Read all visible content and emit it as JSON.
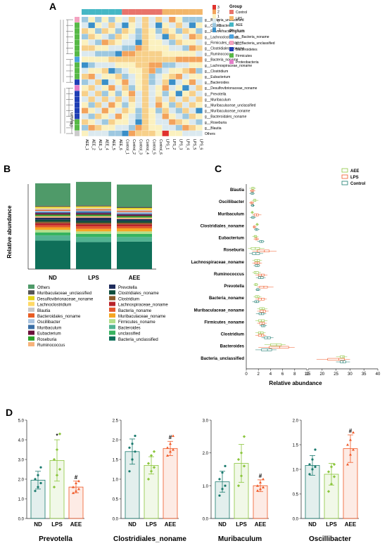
{
  "panels": {
    "a": "A",
    "b": "B",
    "c": "C",
    "d": "D"
  },
  "chart_data": [
    {
      "type": "heatmap",
      "panel": "A",
      "rows": [
        "g__Bacteria_unclassified",
        "g__Oscillibacter",
        "g__Flavonifractor",
        "g__Lachnoclostridium",
        "g__Firmicutes_noname",
        "g__Clostridiales_noname",
        "g__Ruminococcus",
        "g__Bacteria_noname",
        "g__Lachnospiraceae_noname",
        "g__Clostridium",
        "g__Eubacterium",
        "g__Bacteroides",
        "g__Desulfovibrionaceae_noname",
        "g__Prevotella",
        "g__Muribaculum",
        "g__Muribaculaceae_unclassified",
        "g__Muribaculaceae_noname",
        "g__Bacteroidales_noname",
        "g__Roseburia",
        "g__Blautia",
        "Others"
      ],
      "columns": [
        "AEE_1",
        "AEE_2",
        "AEE_3",
        "AEE_4",
        "AEE_5",
        "AEE_6",
        "Control_1",
        "Control_2",
        "Control_3",
        "Control_4",
        "Control_5",
        "Control_6",
        "LPS_1",
        "LPS_2",
        "LPS_3",
        "LPS_4",
        "LPS_5",
        "LPS_6"
      ],
      "column_axis_label": "Phylum",
      "color_scale_ticks": [
        "3",
        "2",
        "1",
        "0",
        "-1",
        "-2"
      ],
      "legend": {
        "group_title": "Group",
        "groups": [
          {
            "name": "Control",
            "color": "#e8736b"
          },
          {
            "name": "LPS",
            "color": "#f2b66a"
          },
          {
            "name": "AEE",
            "color": "#45b7c5"
          }
        ],
        "phylum_title": "Phylum",
        "phyla": [
          {
            "name": "g__Bacteria_noname",
            "color": "#4aa3df"
          },
          {
            "name": "g__Bacteria_unclassified",
            "color": "#f4a3c0"
          },
          {
            "name": "Bacteroidetes",
            "color": "#1f3fb5"
          },
          {
            "name": "Firmicutes",
            "color": "#57b947"
          },
          {
            "name": "Proteobacteria",
            "color": "#e37ec9"
          }
        ]
      }
    },
    {
      "type": "bar",
      "panel": "B",
      "stacked": true,
      "ylabel": "Relative abundance",
      "categories": [
        "ND",
        "LPS",
        "AEE"
      ],
      "series": [
        {
          "name": "Bacteria_unclassified",
          "color": "#0f6f59",
          "values": [
            28.0,
            26.5,
            27.0
          ]
        },
        {
          "name": "Bacteroides",
          "color": "#52b392",
          "values": [
            5.0,
            5.0,
            4.5
          ]
        },
        {
          "name": "unclassified",
          "color": "#37b35f",
          "values": [
            3.0,
            3.0,
            3.0
          ]
        },
        {
          "name": "Firmicutes_noname",
          "color": "#b2df8a",
          "values": [
            2.5,
            2.5,
            2.5
          ]
        },
        {
          "name": "Muribaculaceae_noname",
          "color": "#f5a623",
          "values": [
            2.5,
            2.5,
            3.0
          ]
        },
        {
          "name": "Bacteria_noname",
          "color": "#e4572e",
          "values": [
            2.0,
            2.5,
            2.0
          ]
        },
        {
          "name": "Lachnospiraceae_noname",
          "color": "#b8222a",
          "values": [
            2.0,
            2.0,
            2.0
          ]
        },
        {
          "name": "Clostridium",
          "color": "#8a5a2b",
          "values": [
            1.5,
            1.5,
            1.5
          ]
        },
        {
          "name": "Clostridiales_noname",
          "color": "#0d4d3c",
          "values": [
            2.0,
            2.0,
            2.0
          ]
        },
        {
          "name": "Prevotella",
          "color": "#1f2d5c",
          "values": [
            2.0,
            3.0,
            1.6
          ]
        },
        {
          "name": "Ruminococcus",
          "color": "#f7b37b",
          "values": [
            1.5,
            1.5,
            1.5
          ]
        },
        {
          "name": "Roseburia",
          "color": "#2ca02c",
          "values": [
            1.5,
            1.5,
            1.5
          ]
        },
        {
          "name": "Eubacterium",
          "color": "#6b0f3a",
          "values": [
            1.5,
            1.5,
            1.5
          ]
        },
        {
          "name": "Muribaculum",
          "color": "#3a6ea5",
          "values": [
            1.1,
            1.7,
            1.0
          ]
        },
        {
          "name": "Oscillibacter",
          "color": "#aac4e0",
          "values": [
            1.1,
            0.9,
            1.4
          ]
        },
        {
          "name": "Bacteroidales_noname",
          "color": "#e85d24",
          "values": [
            1.0,
            1.0,
            1.0
          ]
        },
        {
          "name": "Blautia",
          "color": "#c7c7c7",
          "values": [
            1.0,
            1.0,
            1.0
          ]
        },
        {
          "name": "Lachnoclostridium",
          "color": "#ffd966",
          "values": [
            1.0,
            1.0,
            1.0
          ]
        },
        {
          "name": "Desulfovibrionaceae_noname",
          "color": "#e3d51a",
          "values": [
            1.0,
            1.0,
            1.0
          ]
        },
        {
          "name": "Muribaculaceae_unclassified",
          "color": "#555555",
          "values": [
            1.0,
            1.0,
            1.0
          ]
        },
        {
          "name": "Others",
          "color": "#4f9a69",
          "values": [
            22.0,
            23.0,
            22.0
          ]
        }
      ],
      "legend_col1": [
        "Others",
        "Muribaculaceae_unclassified",
        "Desulfovibrionaceae_noname",
        "Lachnoclostridium",
        "Blautia",
        "Bacteroidales_noname",
        "Oscillibacter",
        "Muribaculum",
        "Eubacterium",
        "Roseburia",
        "Ruminococcus"
      ],
      "legend_col2": [
        "Prevotella",
        "Clostridiales_noname",
        "Clostridium",
        "Lachnospiraceae_noname",
        "Bacteria_noname",
        "Muribaculaceae_noname",
        "Firmicutes_noname",
        "Bacteroides",
        "unclassified",
        "Bacteria_unclassified"
      ]
    },
    {
      "type": "box",
      "panel": "C",
      "xlabel": "Relative abundance",
      "x_ticks_left": [
        0,
        2,
        4,
        6,
        8,
        10
      ],
      "x_ticks_right": [
        15,
        20,
        25,
        30,
        35,
        40
      ],
      "groups": [
        {
          "name": "AEE",
          "color": "#8cc63e"
        },
        {
          "name": "LPS",
          "color": "#f05a28"
        },
        {
          "name": "Control",
          "color": "#1a7a6e"
        }
      ],
      "taxa": [
        {
          "name": "Blautia",
          "AEE": [
            0.5,
            0.9,
            1.1,
            1.3,
            1.6
          ],
          "LPS": [
            0.6,
            0.8,
            1.0,
            1.2,
            1.5
          ],
          "Control": [
            0.5,
            0.8,
            1.0,
            1.2,
            1.4
          ]
        },
        {
          "name": "Oscillibacter",
          "AEE": [
            0.9,
            1.2,
            1.4,
            1.6,
            2.0
          ],
          "LPS": [
            0.5,
            0.7,
            0.9,
            1.1,
            1.3
          ],
          "Control": [
            0.7,
            0.9,
            1.1,
            1.2,
            1.4
          ]
        },
        {
          "name": "Muribaculum",
          "AEE": [
            0.7,
            0.9,
            1.0,
            1.1,
            1.3
          ],
          "LPS": [
            1.0,
            1.3,
            1.7,
            2.0,
            2.5
          ],
          "Control": [
            0.6,
            0.9,
            1.1,
            1.3,
            1.6
          ]
        },
        {
          "name": "Clostridiales_noname",
          "AEE": [
            1.5,
            1.7,
            1.8,
            1.9,
            2.1
          ],
          "LPS": [
            1.0,
            1.2,
            1.3,
            1.5,
            1.7
          ],
          "Control": [
            1.3,
            1.5,
            1.7,
            1.9,
            2.2
          ]
        },
        {
          "name": "Eubacterium",
          "AEE": [
            1.0,
            1.3,
            1.5,
            1.7,
            2.0
          ],
          "LPS": [
            1.2,
            1.5,
            1.7,
            1.9,
            2.1
          ],
          "Control": [
            1.8,
            2.2,
            2.5,
            2.8,
            3.0
          ]
        },
        {
          "name": "Roseburia",
          "AEE": [
            0.3,
            0.8,
            1.5,
            2.2,
            3.0
          ],
          "LPS": [
            1.0,
            1.8,
            3.0,
            3.8,
            5.0
          ],
          "Control": [
            0.5,
            1.0,
            1.6,
            2.2,
            2.8
          ]
        },
        {
          "name": "Lachnospiraceae_noname",
          "AEE": [
            1.0,
            1.4,
            1.8,
            2.2,
            2.6
          ],
          "LPS": [
            1.0,
            1.4,
            1.8,
            2.2,
            2.6
          ],
          "Control": [
            1.2,
            1.5,
            1.8,
            2.1,
            2.3
          ]
        },
        {
          "name": "Ruminococcus",
          "AEE": [
            1.0,
            1.3,
            1.6,
            2.0,
            2.4
          ],
          "LPS": [
            1.5,
            2.0,
            2.5,
            3.0,
            3.5
          ],
          "Control": [
            1.6,
            2.0,
            2.4,
            2.8,
            3.2
          ]
        },
        {
          "name": "Prevotella",
          "AEE": [
            1.2,
            1.4,
            1.6,
            1.8,
            2.0
          ],
          "LPS": [
            1.8,
            2.2,
            2.9,
            3.5,
            4.5
          ],
          "Control": [
            1.5,
            1.7,
            1.9,
            2.1,
            2.4
          ]
        },
        {
          "name": "Bacteria_noname",
          "AEE": [
            1.2,
            1.5,
            1.8,
            2.1,
            2.5
          ],
          "LPS": [
            1.5,
            2.0,
            2.5,
            3.0,
            3.4
          ],
          "Control": [
            1.0,
            1.4,
            1.7,
            2.0,
            2.3
          ]
        },
        {
          "name": "Muribaculaceae_noname",
          "AEE": [
            1.8,
            2.2,
            2.6,
            3.0,
            3.5
          ],
          "LPS": [
            1.8,
            2.3,
            2.8,
            3.2,
            3.7
          ],
          "Control": [
            1.6,
            2.1,
            2.5,
            2.9,
            3.3
          ]
        },
        {
          "name": "Firmicutes_noname",
          "AEE": [
            1.5,
            2.0,
            2.5,
            3.0,
            3.5
          ],
          "LPS": [
            1.8,
            2.2,
            2.6,
            3.0,
            3.4
          ],
          "Control": [
            2.2,
            2.5,
            2.8,
            3.1,
            3.4
          ]
        },
        {
          "name": "Clostridium",
          "AEE": [
            1.5,
            2.0,
            2.4,
            2.8,
            3.2
          ],
          "LPS": [
            1.5,
            2.0,
            2.5,
            2.9,
            3.3
          ],
          "Control": [
            2.5,
            3.0,
            3.5,
            4.0,
            4.5
          ]
        },
        {
          "name": "Bacteroides",
          "AEE": [
            3.0,
            4.0,
            5.0,
            5.8,
            6.5
          ],
          "LPS": [
            2.0,
            3.8,
            5.5,
            7.0,
            8.0
          ],
          "Control": [
            1.5,
            2.5,
            3.5,
            4.2,
            5.0
          ]
        },
        {
          "name": "Bacteria_unclassified",
          "AEE": [
            25.0,
            26.5,
            27.5,
            28.0,
            29.0
          ],
          "LPS": [
            18.0,
            22.0,
            26.0,
            28.0,
            30.0
          ],
          "Control": [
            25.0,
            26.5,
            27.5,
            28.5,
            30.0
          ]
        }
      ]
    },
    {
      "type": "bar",
      "panel": "D",
      "subplots": [
        {
          "title": "Prevotella",
          "ylim": [
            0,
            5.0
          ],
          "yticks": [
            "0.0",
            "1.0",
            "2.0",
            "3.0",
            "4.0",
            "5.0"
          ],
          "categories": [
            "ND",
            "LPS",
            "AEE"
          ],
          "values": [
            1.95,
            2.95,
            1.6
          ],
          "errors": [
            0.45,
            1.05,
            0.3
          ],
          "points": [
            [
              1.4,
              1.6,
              1.8,
              2.0,
              2.2,
              2.6
            ],
            [
              1.6,
              2.2,
              2.5,
              3.0,
              3.5,
              4.3
            ],
            [
              1.3,
              1.4,
              1.5,
              1.6,
              1.8,
              1.9
            ]
          ],
          "marks": [
            "",
            "*",
            "#"
          ]
        },
        {
          "title": "Clostridiales_noname",
          "ylim": [
            0,
            2.5
          ],
          "yticks": [
            "0.0",
            "0.5",
            "1.0",
            "1.5",
            "2.0",
            "2.5"
          ],
          "categories": [
            "ND",
            "LPS",
            "AEE"
          ],
          "values": [
            1.7,
            1.35,
            1.78
          ],
          "errors": [
            0.32,
            0.22,
            0.18
          ],
          "points": [
            [
              1.2,
              1.5,
              1.7,
              1.8,
              1.9,
              2.1
            ],
            [
              1.0,
              1.2,
              1.3,
              1.4,
              1.6,
              1.7
            ],
            [
              1.6,
              1.7,
              1.75,
              1.8,
              1.9,
              2.1
            ]
          ],
          "marks": [
            "",
            "",
            "#"
          ]
        },
        {
          "title": "Muribaculum",
          "ylim": [
            0,
            3.0
          ],
          "yticks": [
            "0.0",
            "1.0",
            "2.0",
            "3.0"
          ],
          "categories": [
            "ND",
            "LPS",
            "AEE"
          ],
          "values": [
            1.12,
            1.68,
            1.0
          ],
          "errors": [
            0.32,
            0.58,
            0.18
          ],
          "points": [
            [
              0.7,
              0.9,
              1.0,
              1.2,
              1.4,
              1.6
            ],
            [
              1.0,
              1.3,
              1.6,
              1.8,
              2.0,
              2.5
            ],
            [
              0.85,
              0.9,
              0.95,
              1.0,
              1.1,
              1.2
            ]
          ],
          "marks": [
            "",
            "",
            "#"
          ]
        },
        {
          "title": "Oscillibacter",
          "ylim": [
            0,
            2.0
          ],
          "yticks": [
            "0.0",
            "0.5",
            "1.0",
            "1.5",
            "2.0"
          ],
          "categories": [
            "ND",
            "LPS",
            "AEE"
          ],
          "values": [
            1.08,
            0.9,
            1.42
          ],
          "errors": [
            0.2,
            0.22,
            0.28
          ],
          "points": [
            [
              0.9,
              1.0,
              1.05,
              1.1,
              1.2,
              1.4
            ],
            [
              0.55,
              0.7,
              0.85,
              0.95,
              1.05,
              1.1
            ],
            [
              1.1,
              1.3,
              1.4,
              1.5,
              1.6,
              1.75
            ]
          ],
          "marks": [
            "",
            "",
            "#"
          ]
        }
      ],
      "colors": [
        "#1a7a6e",
        "#8cc63e",
        "#f05a28"
      ]
    }
  ]
}
